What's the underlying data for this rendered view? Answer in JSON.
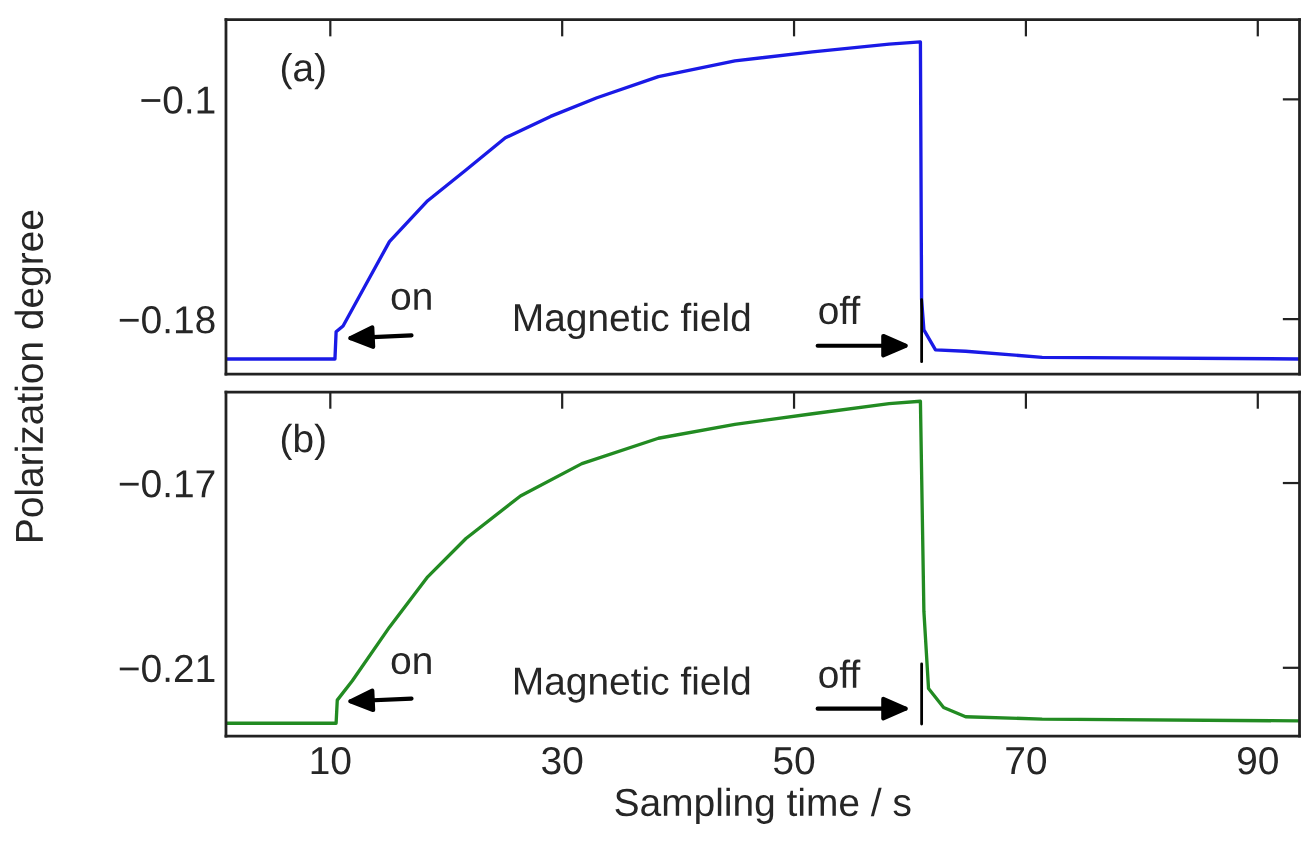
{
  "chart_data": [
    {
      "type": "line",
      "ylabel": "Polarization degree",
      "annotations": [
        "(a)",
        "on",
        "Magnetic field",
        "off"
      ],
      "x": [
        1,
        10.4,
        10.5,
        11.1,
        13.1,
        15.1,
        18.4,
        21.7,
        25.1,
        29.0,
        33.0,
        38.3,
        44.9,
        51.6,
        58.2,
        60.9,
        61.0,
        61.2,
        62.2,
        64.8,
        71.4,
        93.6
      ],
      "series": [
        {
          "color": "#1a1ae6",
          "values": [
            -0.1945,
            -0.1945,
            -0.1846,
            -0.1825,
            -0.1671,
            -0.1518,
            -0.1369,
            -0.1257,
            -0.114,
            -0.1062,
            -0.0994,
            -0.0917,
            -0.086,
            -0.0827,
            -0.0799,
            -0.0791,
            -0.1727,
            -0.1839,
            -0.1912,
            -0.1917,
            -0.1939,
            -0.1945
          ]
        }
      ],
      "xlim": [
        1,
        93.6
      ],
      "xticks": [
        10,
        30,
        50,
        70,
        90
      ],
      "ylim": [
        -0.2,
        -0.071
      ],
      "yticks": [
        {
          "value": -0.1,
          "label": "−0.1"
        },
        {
          "value": -0.18,
          "label": "−0.18"
        }
      ],
      "tick_labels": "y"
    },
    {
      "type": "line",
      "xlabel": "Sampling time / s",
      "annotations": [
        "(b)",
        "on",
        "Magnetic field",
        "off"
      ],
      "x": [
        1,
        10.5,
        10.6,
        11.9,
        15.1,
        18.4,
        21.7,
        26.4,
        31.7,
        38.3,
        44.9,
        51.6,
        58.2,
        60.9,
        61.2,
        61.6,
        62.9,
        64.8,
        71.4,
        93.6
      ],
      "series": [
        {
          "color": "#228b22",
          "values": [
            -0.222,
            -0.222,
            -0.217,
            -0.2128,
            -0.2012,
            -0.1903,
            -0.182,
            -0.1728,
            -0.1658,
            -0.1603,
            -0.1573,
            -0.155,
            -0.1528,
            -0.1523,
            -0.1978,
            -0.2145,
            -0.2186,
            -0.2206,
            -0.2211,
            -0.2215
          ]
        }
      ],
      "xlim": [
        1,
        93.6
      ],
      "xticks": [
        10,
        30,
        50,
        70,
        90
      ],
      "ylim": [
        -0.2248,
        -0.1503
      ],
      "yticks": [
        {
          "value": -0.17,
          "label": "−0.17"
        },
        {
          "value": -0.21,
          "label": "−0.21"
        }
      ]
    }
  ]
}
